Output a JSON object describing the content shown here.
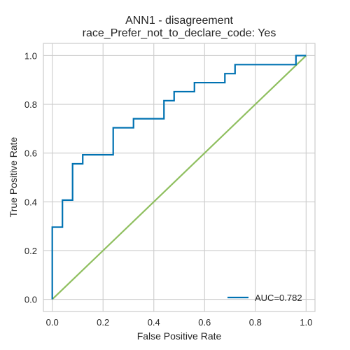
{
  "chart_data": {
    "type": "line",
    "title": "ANN1 - disagreement",
    "subtitle": "race_Prefer_not_to_declare_code: Yes",
    "xlabel": "False Positive Rate",
    "ylabel": "True Positive Rate",
    "xlim": [
      -0.035,
      1.035
    ],
    "ylim": [
      -0.05,
      1.05
    ],
    "xticks": [
      0.0,
      0.2,
      0.4,
      0.6,
      0.8,
      1.0
    ],
    "yticks": [
      0.0,
      0.2,
      0.4,
      0.6,
      0.8,
      1.0
    ],
    "xtick_labels": [
      "0.0",
      "0.2",
      "0.4",
      "0.6",
      "0.8",
      "1.0"
    ],
    "ytick_labels": [
      "0.0",
      "0.2",
      "0.4",
      "0.6",
      "0.8",
      "1.0"
    ],
    "grid": true,
    "legend_position": "lower-right",
    "series": [
      {
        "name": "AUC=0.782",
        "color": "#0072b2",
        "x": [
          0.0,
          0.0,
          0.04,
          0.04,
          0.08,
          0.08,
          0.12,
          0.12,
          0.24,
          0.24,
          0.32,
          0.32,
          0.44,
          0.44,
          0.48,
          0.48,
          0.56,
          0.56,
          0.68,
          0.68,
          0.72,
          0.72,
          0.96,
          0.96,
          1.0
        ],
        "y": [
          0.0,
          0.296,
          0.296,
          0.407,
          0.407,
          0.556,
          0.556,
          0.593,
          0.593,
          0.704,
          0.704,
          0.741,
          0.741,
          0.815,
          0.815,
          0.852,
          0.852,
          0.889,
          0.889,
          0.926,
          0.926,
          0.963,
          0.963,
          1.0,
          1.0
        ]
      },
      {
        "color": "#8fbf5f",
        "x": [
          0.0,
          1.0
        ],
        "y": [
          0.0,
          1.0
        ]
      }
    ]
  }
}
